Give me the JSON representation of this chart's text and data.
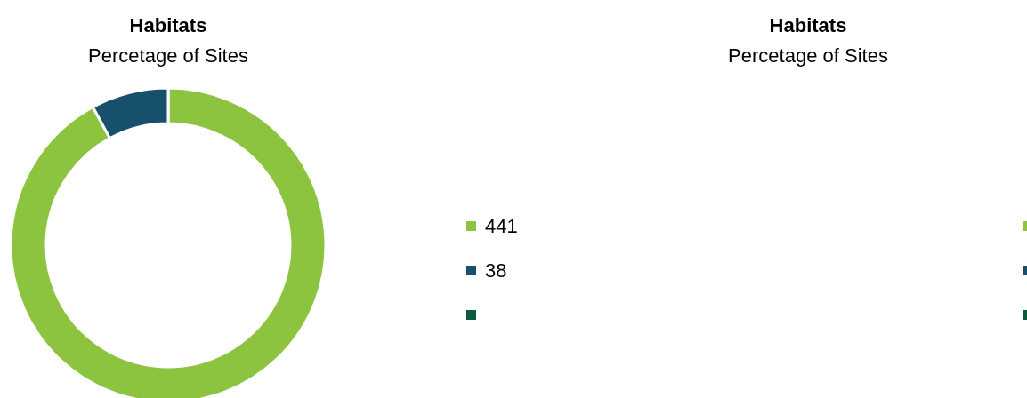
{
  "chart_data": [
    {
      "type": "donut",
      "title": "Habitats",
      "subtitle": "Percetage of Sites",
      "categories": [
        "441",
        "38",
        null
      ],
      "values": [
        441,
        38,
        0
      ],
      "colors": [
        "#8cc43f",
        "#17506d",
        "#0d5a3c"
      ],
      "legend": "right"
    },
    {
      "type": "other",
      "title": "Habitats",
      "subtitle": "Percetage of Sites",
      "colors": [
        "#8cc43f",
        "#17506d",
        "#0d5a3c"
      ]
    }
  ]
}
